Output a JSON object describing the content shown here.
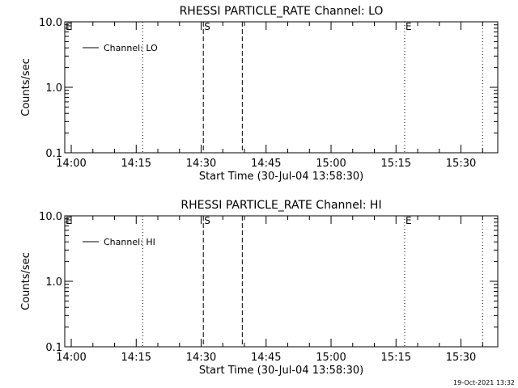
{
  "footer": {
    "timestamp": "19-Oct-2021 13:32"
  },
  "chart_data": [
    {
      "type": "line",
      "title": "RHESSI PARTICLE_RATE Channel: LO",
      "xlabel": "Start Time (30-Jul-04 13:58:30)",
      "ylabel": "Counts/sec",
      "y_scale": "log",
      "ylim": [
        0.1,
        10.0
      ],
      "yticks": [
        "0.1",
        "1.0",
        "10.0"
      ],
      "xlim": [
        "13:58:30",
        "15:38:30"
      ],
      "xticks": [
        "14:00",
        "14:15",
        "14:30",
        "14:45",
        "15:00",
        "15:15",
        "15:30"
      ],
      "legend": {
        "position": "top-left",
        "entries": [
          "Channel: LO"
        ]
      },
      "series": [
        {
          "name": "Channel: LO",
          "x": [],
          "values": []
        }
      ],
      "markers": [
        {
          "time": "13:58:30",
          "style": "none",
          "label": "E"
        },
        {
          "time": "14:16:30",
          "style": "dotted",
          "label": ""
        },
        {
          "time": "14:30:30",
          "style": "dashed",
          "label": "S"
        },
        {
          "time": "14:39:30",
          "style": "dashed",
          "label": ""
        },
        {
          "time": "15:17:00",
          "style": "dotted",
          "label": "E"
        },
        {
          "time": "15:35:00",
          "style": "dotted",
          "label": ""
        }
      ]
    },
    {
      "type": "line",
      "title": "RHESSI PARTICLE_RATE Channel: HI",
      "xlabel": "Start Time (30-Jul-04 13:58:30)",
      "ylabel": "Counts/sec",
      "y_scale": "log",
      "ylim": [
        0.1,
        10.0
      ],
      "yticks": [
        "0.1",
        "1.0",
        "10.0"
      ],
      "xlim": [
        "13:58:30",
        "15:38:30"
      ],
      "xticks": [
        "14:00",
        "14:15",
        "14:30",
        "14:45",
        "15:00",
        "15:15",
        "15:30"
      ],
      "legend": {
        "position": "top-left",
        "entries": [
          "Channel: HI"
        ]
      },
      "series": [
        {
          "name": "Channel: HI",
          "x": [],
          "values": []
        }
      ],
      "markers": [
        {
          "time": "13:58:30",
          "style": "none",
          "label": "E"
        },
        {
          "time": "14:16:30",
          "style": "dotted",
          "label": ""
        },
        {
          "time": "14:30:30",
          "style": "dashed",
          "label": "S"
        },
        {
          "time": "14:39:30",
          "style": "dashed",
          "label": ""
        },
        {
          "time": "15:17:00",
          "style": "dotted",
          "label": "E"
        },
        {
          "time": "15:35:00",
          "style": "dotted",
          "label": ""
        }
      ]
    }
  ]
}
